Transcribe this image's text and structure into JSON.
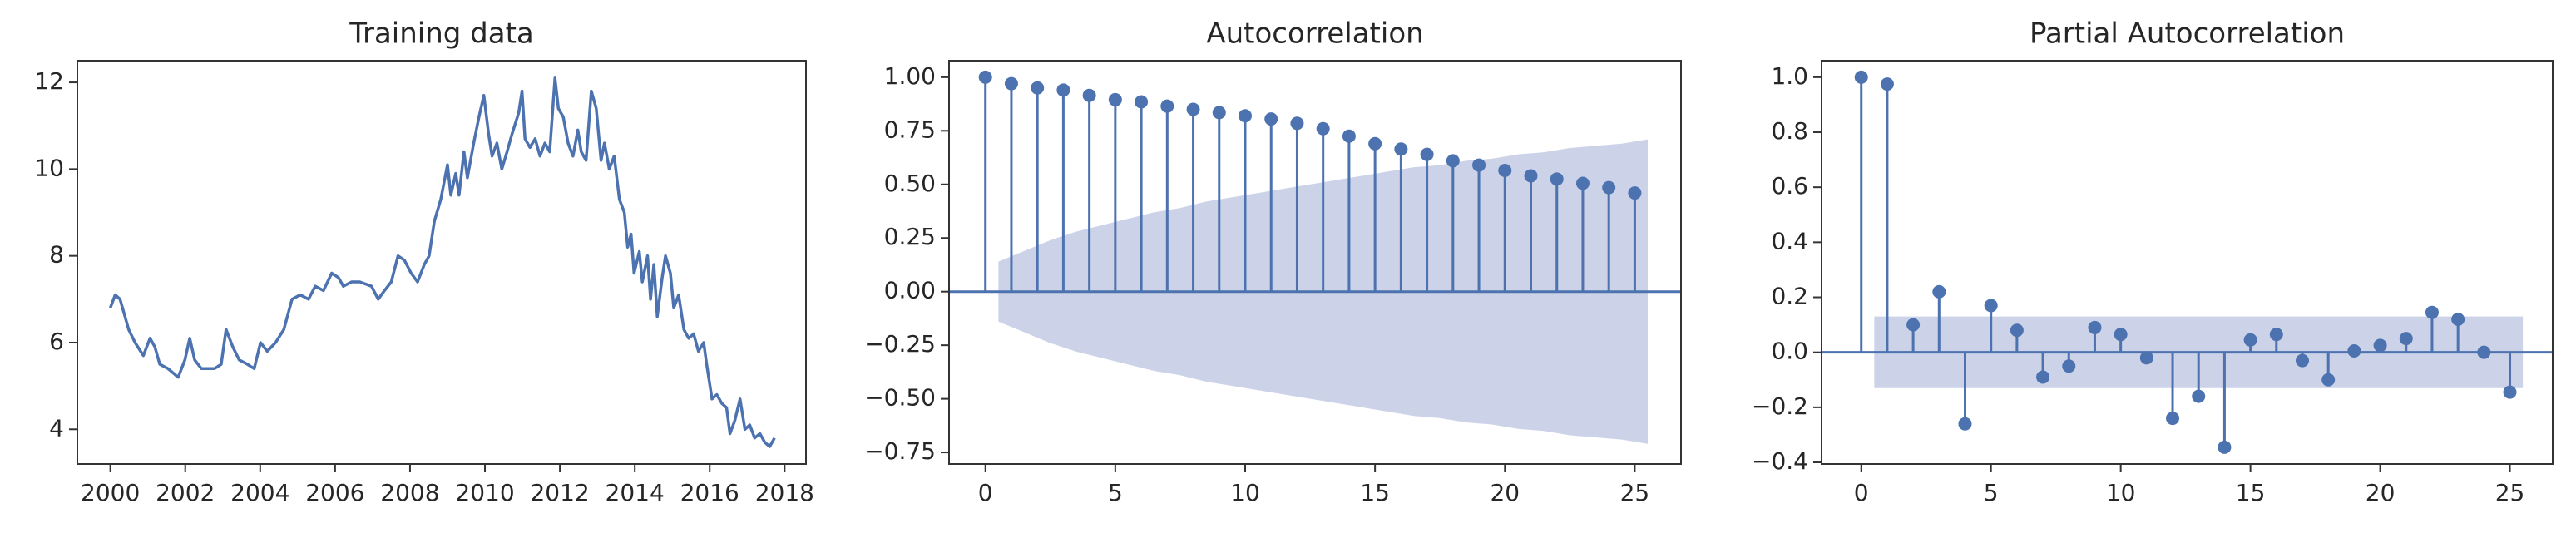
{
  "chart_data": [
    {
      "type": "line",
      "title": "Training data",
      "color": "#4c72b0",
      "x": [
        2000.0,
        2000.13,
        2000.26,
        2000.49,
        2000.66,
        2000.88,
        2001.06,
        2001.19,
        2001.32,
        2001.54,
        2001.81,
        2001.99,
        2002.12,
        2002.25,
        2002.43,
        2002.78,
        2002.96,
        2003.09,
        2003.27,
        2003.44,
        2003.66,
        2003.84,
        2004.01,
        2004.19,
        2004.41,
        2004.63,
        2004.85,
        2005.07,
        2005.29,
        2005.47,
        2005.69,
        2005.91,
        2006.09,
        2006.22,
        2006.44,
        2006.66,
        2006.97,
        2007.15,
        2007.32,
        2007.5,
        2007.68,
        2007.85,
        2008.03,
        2008.2,
        2008.38,
        2008.51,
        2008.65,
        2008.82,
        2009.0,
        2009.09,
        2009.22,
        2009.31,
        2009.44,
        2009.53,
        2009.7,
        2009.84,
        2009.97,
        2010.1,
        2010.19,
        2010.32,
        2010.45,
        2010.59,
        2010.72,
        2010.9,
        2010.99,
        2011.07,
        2011.2,
        2011.34,
        2011.47,
        2011.6,
        2011.73,
        2011.87,
        2011.96,
        2012.09,
        2012.22,
        2012.35,
        2012.48,
        2012.57,
        2012.7,
        2012.84,
        2012.97,
        2013.1,
        2013.19,
        2013.32,
        2013.45,
        2013.59,
        2013.72,
        2013.81,
        2013.9,
        2013.98,
        2014.12,
        2014.2,
        2014.34,
        2014.42,
        2014.51,
        2014.6,
        2014.73,
        2014.82,
        2014.95,
        2015.04,
        2015.17,
        2015.31,
        2015.44,
        2015.57,
        2015.7,
        2015.84,
        2015.92,
        2016.06,
        2016.19,
        2016.32,
        2016.45,
        2016.54,
        2016.67,
        2016.81,
        2016.94,
        2017.07,
        2017.2,
        2017.34,
        2017.47,
        2017.6,
        2017.73
      ],
      "values": [
        6.8,
        7.1,
        7.0,
        6.3,
        6.0,
        5.7,
        6.1,
        5.9,
        5.5,
        5.4,
        5.2,
        5.6,
        6.1,
        5.6,
        5.4,
        5.4,
        5.5,
        6.3,
        5.9,
        5.6,
        5.5,
        5.4,
        6.0,
        5.8,
        6.0,
        6.3,
        7.0,
        7.1,
        7.0,
        7.3,
        7.2,
        7.6,
        7.5,
        7.3,
        7.4,
        7.4,
        7.3,
        7.0,
        7.2,
        7.4,
        8.0,
        7.9,
        7.6,
        7.4,
        7.8,
        8.0,
        8.8,
        9.3,
        10.1,
        9.4,
        9.9,
        9.4,
        10.4,
        9.8,
        10.6,
        11.2,
        11.7,
        10.8,
        10.3,
        10.6,
        10.0,
        10.4,
        10.8,
        11.3,
        11.8,
        10.7,
        10.5,
        10.7,
        10.3,
        10.6,
        10.4,
        12.1,
        11.4,
        11.2,
        10.6,
        10.3,
        10.9,
        10.4,
        10.2,
        11.8,
        11.4,
        10.2,
        10.6,
        10.0,
        10.3,
        9.3,
        9.0,
        8.2,
        8.5,
        7.6,
        8.1,
        7.4,
        8.0,
        7.0,
        7.8,
        6.6,
        7.5,
        8.0,
        7.6,
        6.8,
        7.1,
        6.3,
        6.1,
        6.2,
        5.8,
        6.0,
        5.5,
        4.7,
        4.8,
        4.6,
        4.5,
        3.9,
        4.2,
        4.7,
        4.0,
        4.1,
        3.8,
        3.9,
        3.7,
        3.6,
        3.8
      ],
      "xlim": [
        1999.12,
        2018.57
      ],
      "xticks": [
        2000,
        2002,
        2004,
        2006,
        2008,
        2010,
        2012,
        2014,
        2016,
        2018
      ],
      "ylim": [
        3.2,
        12.5
      ],
      "yticks": [
        4,
        6,
        8,
        10,
        12
      ]
    },
    {
      "type": "stem",
      "title": "Autocorrelation",
      "color": "#4c72b0",
      "band_color": "#ccd3e8",
      "x": [
        0,
        1,
        2,
        3,
        4,
        5,
        6,
        7,
        8,
        9,
        10,
        11,
        12,
        13,
        14,
        15,
        16,
        17,
        18,
        19,
        20,
        21,
        22,
        23,
        24,
        25
      ],
      "values": [
        1.0,
        0.97,
        0.95,
        0.94,
        0.915,
        0.895,
        0.885,
        0.865,
        0.85,
        0.835,
        0.82,
        0.805,
        0.785,
        0.76,
        0.725,
        0.69,
        0.665,
        0.64,
        0.61,
        0.59,
        0.565,
        0.54,
        0.525,
        0.505,
        0.485,
        0.46
      ],
      "confint": [
        0.14,
        0.19,
        0.24,
        0.28,
        0.31,
        0.34,
        0.37,
        0.39,
        0.42,
        0.44,
        0.46,
        0.48,
        0.5,
        0.52,
        0.54,
        0.56,
        0.58,
        0.59,
        0.61,
        0.62,
        0.64,
        0.65,
        0.67,
        0.68,
        0.69,
        0.71
      ],
      "xlim": [
        -1.4,
        26.78
      ],
      "xticks": [
        0,
        5,
        10,
        15,
        20,
        25
      ],
      "ylim": [
        -0.804,
        1.077
      ],
      "yticks": [
        {
          "value": 1,
          "label": "1.00"
        },
        {
          "value": 0.75,
          "label": "0.75"
        },
        {
          "value": 0.5,
          "label": "0.50"
        },
        {
          "value": 0.25,
          "label": "0.25"
        },
        {
          "value": 0,
          "label": "0.00"
        },
        {
          "value": -0.25,
          "label": "−0.25"
        },
        {
          "value": -0.5,
          "label": "−0.50"
        },
        {
          "value": -0.75,
          "label": "−0.75"
        }
      ]
    },
    {
      "type": "stem",
      "title": "Partial Autocorrelation",
      "color": "#4c72b0",
      "band_color": "#ccd3e8",
      "x": [
        0,
        1,
        2,
        3,
        4,
        5,
        6,
        7,
        8,
        9,
        10,
        11,
        12,
        13,
        14,
        15,
        16,
        17,
        18,
        19,
        20,
        21,
        22,
        23,
        24,
        25
      ],
      "values": [
        1.0,
        0.975,
        0.1,
        0.22,
        -0.26,
        0.17,
        0.08,
        -0.09,
        -0.05,
        0.09,
        0.065,
        -0.02,
        -0.24,
        -0.16,
        -0.345,
        0.045,
        0.065,
        -0.03,
        -0.1,
        0.005,
        0.025,
        0.05,
        0.145,
        0.12,
        0.0,
        -0.145
      ],
      "confint": [
        0.13,
        0.13,
        0.13,
        0.13,
        0.13,
        0.13,
        0.13,
        0.13,
        0.13,
        0.13,
        0.13,
        0.13,
        0.13,
        0.13,
        0.13,
        0.13,
        0.13,
        0.13,
        0.13,
        0.13,
        0.13,
        0.13,
        0.13,
        0.13,
        0.13,
        0.13
      ],
      "xlim": [
        -1.53,
        26.65
      ],
      "xticks": [
        0,
        5,
        10,
        15,
        20,
        25
      ],
      "ylim": [
        -0.406,
        1.06
      ],
      "yticks": [
        {
          "value": 1,
          "label": "1.0"
        },
        0.8,
        0.6,
        0.4,
        0.2,
        {
          "value": 0,
          "label": "0.0"
        },
        {
          "value": -0.2,
          "label": "−0.2"
        },
        {
          "value": -0.4,
          "label": "−0.4"
        }
      ]
    }
  ]
}
